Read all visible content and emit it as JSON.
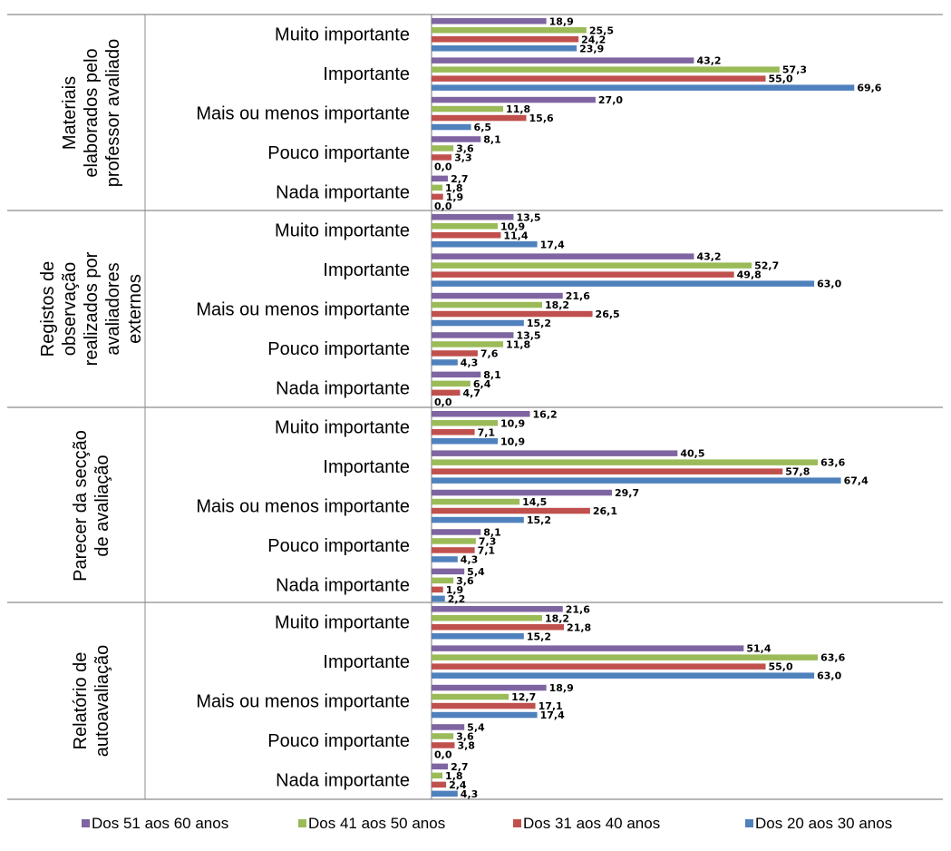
{
  "chart_data": {
    "type": "bar",
    "orientation": "horizontal",
    "title": "",
    "xlim": [
      0,
      80
    ],
    "grid": false,
    "legend_position": "bottom",
    "groups": [
      {
        "label_lines": [
          "Materiais",
          "elaborados pelo",
          "professor avaliado"
        ],
        "categories": [
          "Muito importante",
          "Importante",
          "Mais ou menos importante",
          "Pouco importante",
          "Nada importante"
        ],
        "values": {
          "Dos 51 aos 60 anos": [
            18.9,
            43.2,
            27.0,
            8.1,
            2.7
          ],
          "Dos 41 aos 50 anos": [
            25.5,
            57.3,
            11.8,
            3.6,
            1.8
          ],
          "Dos 31 aos 40 anos": [
            24.2,
            55.0,
            15.6,
            3.3,
            1.9
          ],
          "Dos 20 aos 30 anos": [
            23.9,
            69.6,
            6.5,
            0.0,
            0.0
          ]
        },
        "labels": {
          "Dos 51 aos 60 anos": [
            "18,9",
            "43,2",
            "27,0",
            "8,1",
            "2,7"
          ],
          "Dos 41 aos 50 anos": [
            "25,5",
            "57,3",
            "11,8",
            "3,6",
            "1,8"
          ],
          "Dos 31 aos 40 anos": [
            "24,2",
            "55,0",
            "15,6",
            "3,3",
            "1,9"
          ],
          "Dos 20 aos 30 anos": [
            "23,9",
            "69,6",
            "6,5",
            "0,0",
            "0,0"
          ]
        }
      },
      {
        "label_lines": [
          "Registos de",
          "observação",
          "realizados por",
          "avaliadores",
          "externos"
        ],
        "categories": [
          "Muito importante",
          "Importante",
          "Mais ou menos importante",
          "Pouco importante",
          "Nada importante"
        ],
        "values": {
          "Dos 51 aos 60 anos": [
            13.5,
            43.2,
            21.6,
            13.5,
            8.1
          ],
          "Dos 41 aos 50 anos": [
            10.9,
            52.7,
            18.2,
            11.8,
            6.4
          ],
          "Dos 31 aos 40 anos": [
            11.4,
            49.8,
            26.5,
            7.6,
            4.7
          ],
          "Dos 20 aos 30 anos": [
            17.4,
            63.0,
            15.2,
            4.3,
            0.0
          ]
        },
        "labels": {
          "Dos 51 aos 60 anos": [
            "13,5",
            "43,2",
            "21,6",
            "13,5",
            "8,1"
          ],
          "Dos 41 aos 50 anos": [
            "10,9",
            "52,7",
            "18,2",
            "11,8",
            "6,4"
          ],
          "Dos 31 aos 40 anos": [
            "11,4",
            "49,8",
            "26,5",
            "7,6",
            "4,7"
          ],
          "Dos 20 aos 30 anos": [
            "17,4",
            "63,0",
            "15,2",
            "4,3",
            "0,0"
          ]
        }
      },
      {
        "label_lines": [
          "Parecer da secção",
          "de avaliação"
        ],
        "categories": [
          "Muito importante",
          "Importante",
          "Mais ou menos importante",
          "Pouco importante",
          "Nada importante"
        ],
        "values": {
          "Dos 51 aos 60 anos": [
            16.2,
            40.5,
            29.7,
            8.1,
            5.4
          ],
          "Dos 41 aos 50 anos": [
            10.9,
            63.6,
            14.5,
            7.3,
            3.6
          ],
          "Dos 31 aos 40 anos": [
            7.1,
            57.8,
            26.1,
            7.1,
            1.9
          ],
          "Dos 20 aos 30 anos": [
            10.9,
            67.4,
            15.2,
            4.3,
            2.2
          ]
        },
        "labels": {
          "Dos 51 aos 60 anos": [
            "16,2",
            "40,5",
            "29,7",
            "8,1",
            "5,4"
          ],
          "Dos 41 aos 50 anos": [
            "10,9",
            "63,6",
            "14,5",
            "7,3",
            "3,6"
          ],
          "Dos 31 aos 40 anos": [
            "7,1",
            "57,8",
            "26,1",
            "7,1",
            "1,9"
          ],
          "Dos 20 aos 30 anos": [
            "10,9",
            "67,4",
            "15,2",
            "4,3",
            "2,2"
          ]
        }
      },
      {
        "label_lines": [
          "Relatório de",
          "autoavaliação"
        ],
        "categories": [
          "Muito importante",
          "Importante",
          "Mais ou menos importante",
          "Pouco importante",
          "Nada importante"
        ],
        "values": {
          "Dos 51 aos 60 anos": [
            21.6,
            51.4,
            18.9,
            5.4,
            2.7
          ],
          "Dos 41 aos 50 anos": [
            18.2,
            63.6,
            12.7,
            3.6,
            1.8
          ],
          "Dos 31 aos 40 anos": [
            21.8,
            55.0,
            17.1,
            3.8,
            2.4
          ],
          "Dos 20 aos 30 anos": [
            15.2,
            63.0,
            17.4,
            0.0,
            4.3
          ]
        },
        "labels": {
          "Dos 51 aos 60 anos": [
            "21,6",
            "51,4",
            "18,9",
            "5,4",
            "2,7"
          ],
          "Dos 41 aos 50 anos": [
            "18,2",
            "63,6",
            "12,7",
            "3,6",
            "1,8"
          ],
          "Dos 31 aos 40 anos": [
            "21,8",
            "55,0",
            "17,1",
            "3,8",
            "2,4"
          ],
          "Dos 20 aos 30 anos": [
            "15,2",
            "63,0",
            "17,4",
            "0,0",
            "4,3"
          ]
        }
      }
    ],
    "series": [
      {
        "name": "Dos 51 aos 60 anos",
        "color": "#7F64A2"
      },
      {
        "name": "Dos 41 aos 50 anos",
        "color": "#9BBB59"
      },
      {
        "name": "Dos 31 aos 40 anos",
        "color": "#C0504D"
      },
      {
        "name": "Dos 20 aos 30 anos",
        "color": "#4F81BD"
      }
    ]
  }
}
